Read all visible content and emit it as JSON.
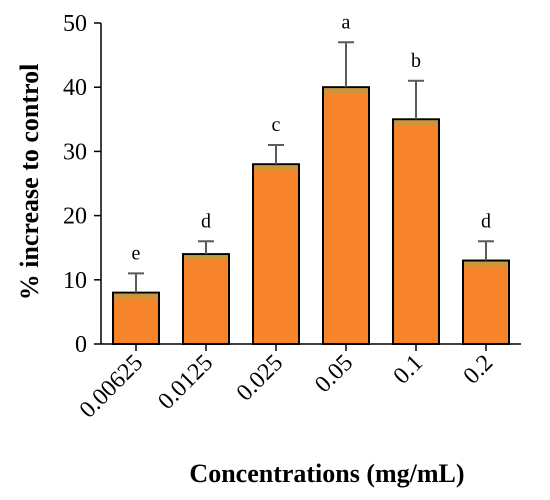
{
  "chart_data": {
    "type": "bar",
    "categories": [
      "0.00625",
      "0.0125",
      "0.025",
      "0.05",
      "0.1",
      "0.2"
    ],
    "values": [
      8,
      14,
      28,
      40,
      35,
      13
    ],
    "errors": [
      3,
      2,
      3,
      7,
      6,
      3
    ],
    "significance_letters": [
      "e",
      "d",
      "c",
      "a",
      "b",
      "d"
    ],
    "xlabel": "Concentrations (mg/mL)",
    "ylabel": "% increase to control",
    "ylim": [
      0,
      50
    ],
    "yticks": [
      0,
      10,
      20,
      30,
      40,
      50
    ],
    "grid": false,
    "colors": {
      "bar_fill": "#F7832B",
      "bar_top_band": "#C9973A",
      "bar_stroke": "#000000",
      "error_bar": "#5A5A5A",
      "axis": "#000000"
    }
  }
}
